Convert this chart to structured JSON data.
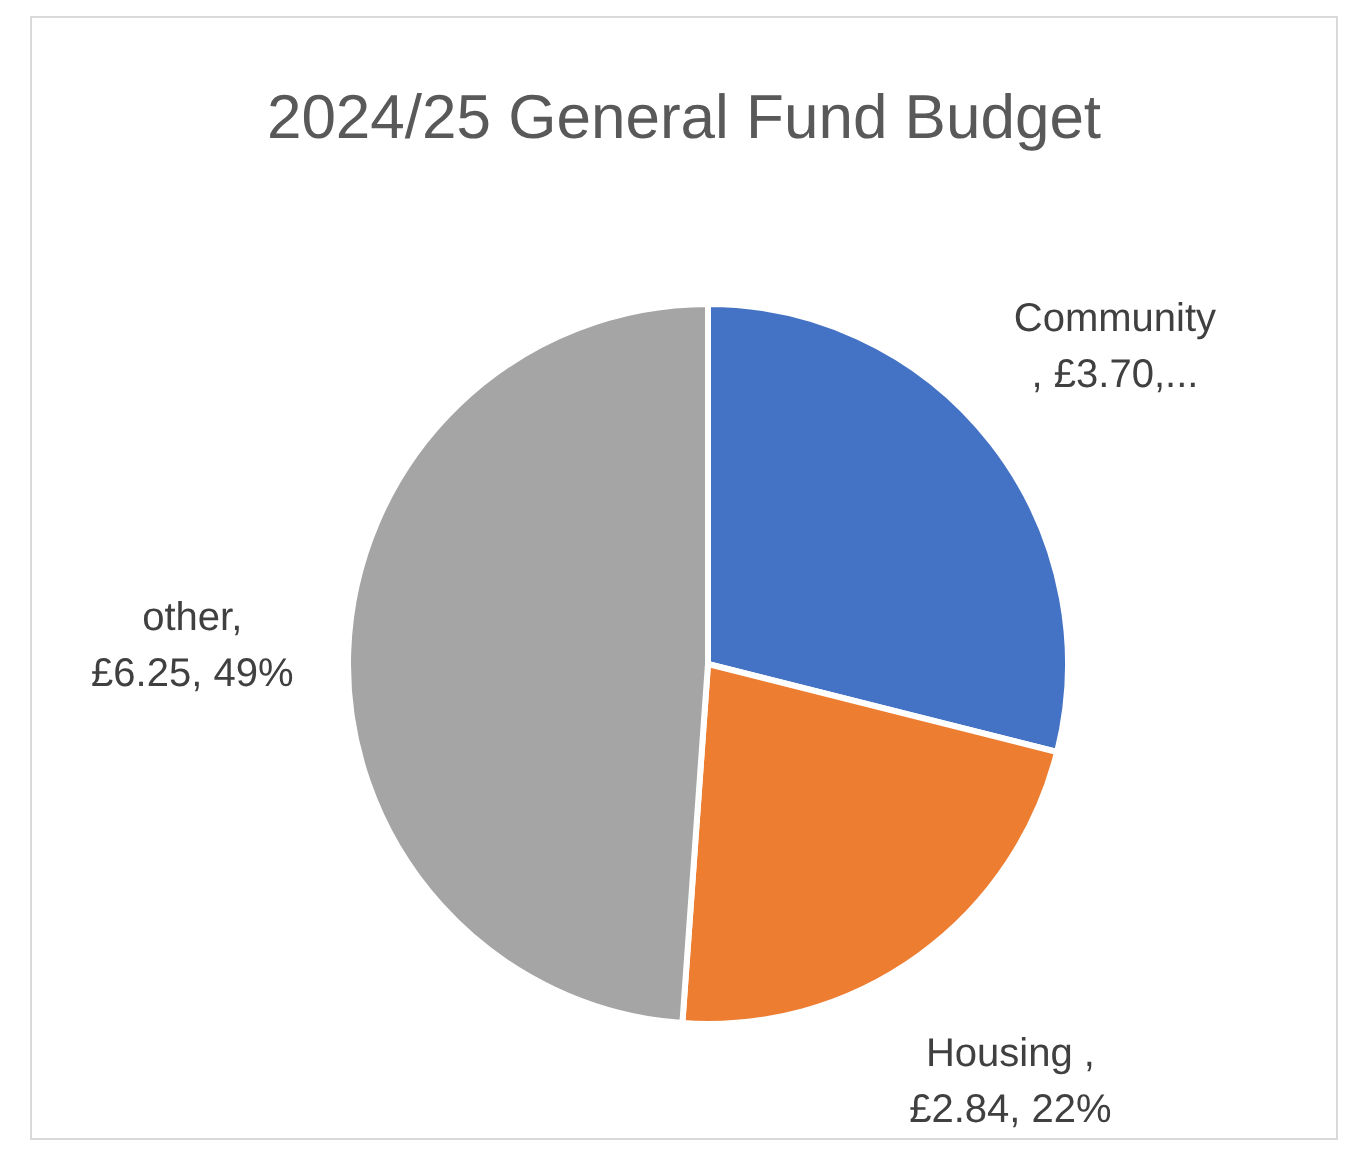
{
  "chart_data": {
    "type": "pie",
    "title": "2024/25 General Fund Budget",
    "categories": [
      "Community",
      "Housing",
      "other"
    ],
    "values": [
      3.7,
      2.84,
      6.25
    ],
    "colors": [
      "#4472c4",
      "#ed7d31",
      "#a5a5a5"
    ],
    "value_labels": [
      "\n, £3.70,...",
      " ,\n£2.84, 22%",
      ",\n£6.25, 49%"
    ],
    "legend": false
  }
}
